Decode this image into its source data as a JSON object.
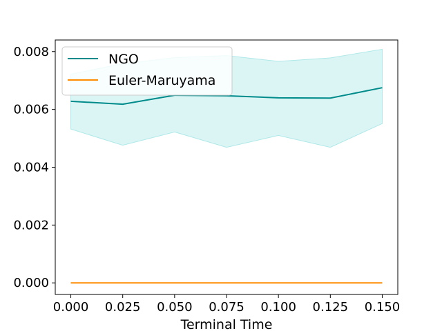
{
  "chart_data": {
    "type": "line",
    "title": "",
    "xlabel": "Terminal Time",
    "ylabel": "",
    "x": [
      0.0,
      0.025,
      0.05,
      0.075,
      0.1,
      0.125,
      0.15
    ],
    "xticks": [
      "0.000",
      "0.025",
      "0.050",
      "0.075",
      "0.100",
      "0.125",
      "0.150"
    ],
    "yticks": [
      "0.000",
      "0.002",
      "0.004",
      "0.006",
      "0.008"
    ],
    "xlim": [
      -0.0075,
      0.1575
    ],
    "ylim": [
      -0.0004,
      0.0084
    ],
    "grid": false,
    "legend_position": "top-left",
    "series": [
      {
        "name": "NGO",
        "color": "#008b8b",
        "band_color": "#afe8e8",
        "values": [
          0.00628,
          0.00618,
          0.00649,
          0.00647,
          0.0064,
          0.00639,
          0.00675
        ],
        "band_upper": [
          0.00722,
          0.00758,
          0.00779,
          0.00786,
          0.00766,
          0.00778,
          0.00808
        ],
        "band_lower": [
          0.00532,
          0.00476,
          0.00522,
          0.00469,
          0.0051,
          0.00469,
          0.00551
        ]
      },
      {
        "name": "Euler-Maruyama",
        "color": "#ff8c00",
        "values": [
          0.0,
          0.0,
          0.0,
          0.0,
          0.0,
          0.0,
          0.0
        ]
      }
    ]
  }
}
